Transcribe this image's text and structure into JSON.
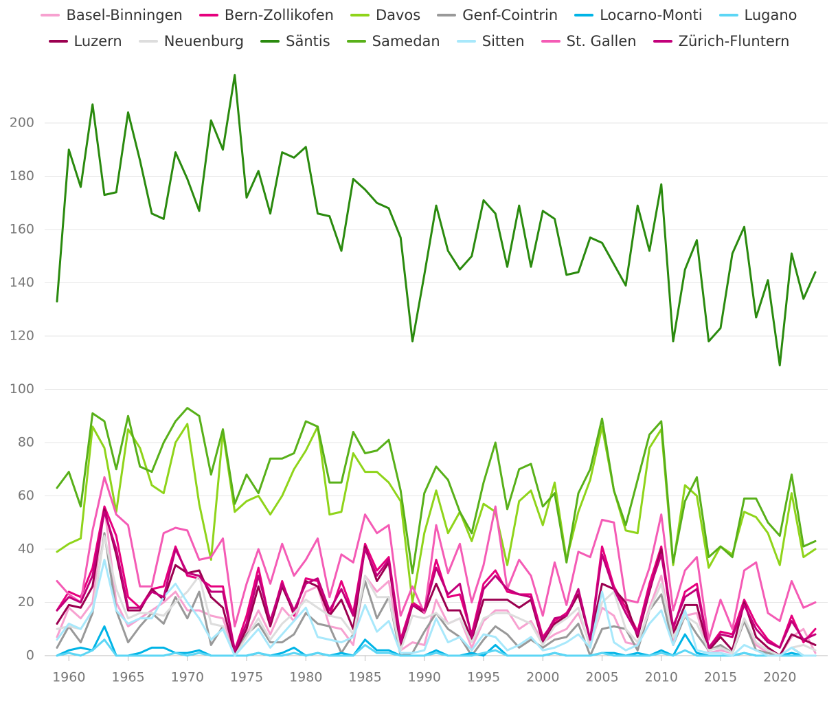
{
  "chart_data": {
    "type": "line",
    "x": [
      1959,
      1960,
      1961,
      1962,
      1963,
      1964,
      1965,
      1966,
      1967,
      1968,
      1969,
      1970,
      1971,
      1972,
      1973,
      1974,
      1975,
      1976,
      1977,
      1978,
      1979,
      1980,
      1981,
      1982,
      1983,
      1984,
      1985,
      1986,
      1987,
      1988,
      1989,
      1990,
      1991,
      1992,
      1993,
      1994,
      1995,
      1996,
      1997,
      1998,
      1999,
      2000,
      2001,
      2002,
      2003,
      2004,
      2005,
      2006,
      2007,
      2008,
      2009,
      2010,
      2011,
      2012,
      2013,
      2014,
      2015,
      2016,
      2017,
      2018,
      2019,
      2020,
      2021,
      2022,
      2023
    ],
    "xlim": [
      1959,
      2023
    ],
    "xticks": [
      1960,
      1965,
      1970,
      1975,
      1980,
      1985,
      1990,
      1995,
      2000,
      2005,
      2010,
      2015,
      2020
    ],
    "ylim": [
      0,
      220
    ],
    "yticks": [
      0,
      20,
      40,
      60,
      80,
      100,
      120,
      140,
      160,
      180,
      200
    ],
    "grid": true,
    "series": [
      {
        "name": "Basel-Binningen",
        "color": "#f7a1d0",
        "values": [
          7,
          18,
          14,
          20,
          56,
          20,
          11,
          14,
          17,
          20,
          24,
          17,
          17,
          15,
          14,
          1,
          8,
          17,
          8,
          18,
          13,
          24,
          26,
          11,
          10,
          4,
          30,
          24,
          28,
          2,
          5,
          4,
          21,
          12,
          14,
          3,
          13,
          17,
          17,
          10,
          13,
          5,
          8,
          10,
          16,
          4,
          18,
          15,
          5,
          4,
          18,
          30,
          5,
          15,
          16,
          1,
          2,
          1,
          13,
          4,
          1,
          0,
          7,
          10,
          1
        ]
      },
      {
        "name": "Bern-Zollikofen",
        "color": "#e6007e",
        "values": [
          17,
          24,
          22,
          33,
          56,
          45,
          22,
          18,
          25,
          26,
          41,
          30,
          29,
          26,
          26,
          2,
          15,
          33,
          12,
          28,
          15,
          29,
          28,
          15,
          28,
          16,
          42,
          32,
          37,
          6,
          20,
          17,
          36,
          22,
          23,
          8,
          27,
          32,
          24,
          23,
          23,
          7,
          13,
          16,
          23,
          6,
          41,
          26,
          18,
          9,
          27,
          41,
          10,
          24,
          27,
          3,
          9,
          8,
          21,
          12,
          6,
          3,
          15,
          5,
          10
        ]
      },
      {
        "name": "Davos",
        "color": "#8fd41a",
        "values": [
          39,
          42,
          44,
          86,
          78,
          54,
          85,
          78,
          64,
          61,
          80,
          87,
          57,
          36,
          84,
          54,
          58,
          60,
          53,
          60,
          70,
          77,
          86,
          53,
          54,
          76,
          69,
          69,
          65,
          58,
          20,
          46,
          62,
          46,
          54,
          43,
          57,
          54,
          34,
          58,
          62,
          49,
          65,
          36,
          54,
          66,
          86,
          62,
          47,
          46,
          78,
          85,
          34,
          64,
          60,
          33,
          41,
          38,
          54,
          52,
          46,
          34,
          61,
          37,
          40
        ]
      },
      {
        "name": "Genf-Cointrin",
        "color": "#999999",
        "values": [
          3,
          11,
          5,
          16,
          46,
          17,
          5,
          11,
          16,
          12,
          22,
          14,
          24,
          4,
          11,
          0,
          8,
          12,
          5,
          5,
          8,
          16,
          12,
          11,
          1,
          8,
          28,
          14,
          22,
          0,
          1,
          9,
          16,
          10,
          7,
          0,
          6,
          11,
          8,
          3,
          6,
          3,
          6,
          7,
          12,
          0,
          10,
          11,
          10,
          2,
          17,
          23,
          4,
          15,
          8,
          2,
          4,
          1,
          13,
          2,
          1,
          0,
          3,
          0,
          0
        ]
      },
      {
        "name": "Locarno-Monti",
        "color": "#00b4e6",
        "values": [
          0,
          2,
          3,
          2,
          11,
          0,
          0,
          1,
          3,
          3,
          1,
          1,
          2,
          0,
          0,
          0,
          0,
          1,
          0,
          1,
          3,
          0,
          1,
          0,
          1,
          0,
          6,
          2,
          2,
          0,
          0,
          0,
          2,
          0,
          0,
          1,
          0,
          4,
          0,
          0,
          0,
          0,
          1,
          0,
          0,
          0,
          1,
          1,
          0,
          1,
          0,
          2,
          0,
          8,
          1,
          0,
          0,
          0,
          1,
          0,
          0,
          0,
          1,
          0,
          0
        ]
      },
      {
        "name": "Lugano",
        "color": "#5cd6f5",
        "values": [
          0,
          1,
          0,
          2,
          6,
          0,
          0,
          0,
          0,
          0,
          1,
          0,
          1,
          0,
          0,
          0,
          0,
          1,
          0,
          0,
          1,
          0,
          1,
          0,
          0,
          0,
          4,
          1,
          1,
          0,
          0,
          0,
          1,
          0,
          0,
          0,
          1,
          2,
          0,
          0,
          0,
          0,
          1,
          0,
          0,
          0,
          1,
          0,
          0,
          0,
          0,
          1,
          0,
          2,
          0,
          0,
          0,
          0,
          1,
          0,
          0,
          0,
          0,
          0,
          0
        ]
      },
      {
        "name": "Luzern",
        "color": "#9b0050",
        "values": [
          12,
          19,
          18,
          26,
          55,
          38,
          17,
          17,
          25,
          21,
          34,
          31,
          32,
          22,
          18,
          1,
          10,
          26,
          11,
          26,
          16,
          28,
          26,
          15,
          21,
          10,
          41,
          28,
          35,
          3,
          19,
          16,
          27,
          17,
          17,
          6,
          21,
          21,
          21,
          18,
          21,
          5,
          12,
          15,
          23,
          6,
          27,
          25,
          20,
          7,
          24,
          40,
          8,
          19,
          19,
          2,
          7,
          2,
          20,
          7,
          3,
          0,
          8,
          6,
          4
        ]
      },
      {
        "name": "Neuenburg",
        "color": "#dddddd",
        "values": [
          10,
          11,
          10,
          17,
          45,
          25,
          14,
          16,
          16,
          15,
          20,
          24,
          30,
          12,
          11,
          0,
          7,
          14,
          6,
          12,
          16,
          21,
          18,
          15,
          14,
          8,
          30,
          22,
          22,
          2,
          15,
          14,
          16,
          12,
          14,
          5,
          14,
          16,
          16,
          14,
          12,
          4,
          11,
          14,
          18,
          3,
          20,
          24,
          10,
          5,
          17,
          27,
          7,
          15,
          12,
          2,
          3,
          1,
          14,
          5,
          2,
          0,
          3,
          4,
          2
        ]
      },
      {
        "name": "Säntis",
        "color": "#2a8a0e",
        "values": [
          133,
          190,
          176,
          207,
          173,
          174,
          204,
          186,
          166,
          164,
          189,
          179,
          167,
          201,
          190,
          218,
          172,
          182,
          166,
          189,
          187,
          191,
          166,
          165,
          152,
          179,
          175,
          170,
          168,
          157,
          118,
          143,
          169,
          152,
          145,
          150,
          171,
          166,
          146,
          169,
          146,
          167,
          164,
          143,
          144,
          157,
          155,
          147,
          139,
          169,
          152,
          177,
          118,
          145,
          156,
          118,
          123,
          151,
          161,
          127,
          141,
          109,
          151,
          134,
          144
        ]
      },
      {
        "name": "Samedan",
        "color": "#58b019",
        "values": [
          63,
          69,
          56,
          91,
          88,
          70,
          90,
          71,
          69,
          80,
          88,
          93,
          90,
          68,
          85,
          57,
          68,
          61,
          74,
          74,
          76,
          88,
          86,
          65,
          65,
          84,
          76,
          77,
          81,
          62,
          31,
          61,
          71,
          66,
          54,
          46,
          65,
          80,
          55,
          70,
          72,
          56,
          61,
          35,
          61,
          70,
          89,
          62,
          49,
          66,
          83,
          88,
          35,
          58,
          67,
          37,
          41,
          37,
          59,
          59,
          50,
          45,
          68,
          41,
          43
        ]
      },
      {
        "name": "Sitten",
        "color": "#a8e8fb",
        "values": [
          6,
          12,
          10,
          17,
          36,
          17,
          12,
          14,
          14,
          22,
          27,
          20,
          14,
          6,
          10,
          0,
          5,
          10,
          3,
          8,
          13,
          18,
          7,
          6,
          5,
          7,
          19,
          9,
          13,
          1,
          1,
          2,
          14,
          5,
          7,
          2,
          8,
          7,
          2,
          4,
          7,
          2,
          3,
          5,
          8,
          3,
          24,
          5,
          2,
          4,
          12,
          17,
          4,
          17,
          2,
          1,
          1,
          0,
          4,
          2,
          0,
          0,
          3,
          0,
          0
        ]
      },
      {
        "name": "St. Gallen",
        "color": "#f45bb5",
        "values": [
          28,
          23,
          20,
          47,
          67,
          53,
          49,
          26,
          26,
          46,
          48,
          47,
          36,
          37,
          44,
          11,
          27,
          40,
          27,
          42,
          30,
          36,
          44,
          22,
          38,
          35,
          53,
          46,
          49,
          15,
          26,
          16,
          49,
          31,
          42,
          20,
          34,
          56,
          25,
          36,
          30,
          15,
          35,
          19,
          39,
          37,
          51,
          50,
          21,
          20,
          33,
          53,
          17,
          32,
          37,
          6,
          21,
          10,
          32,
          35,
          16,
          13,
          28,
          18,
          20
        ]
      },
      {
        "name": "Zürich-Fluntern",
        "color": "#c2007a",
        "values": [
          17,
          22,
          20,
          30,
          54,
          40,
          18,
          18,
          24,
          22,
          40,
          31,
          30,
          24,
          24,
          2,
          12,
          30,
          13,
          27,
          17,
          27,
          29,
          17,
          25,
          15,
          40,
          30,
          36,
          5,
          19,
          17,
          33,
          23,
          27,
          7,
          25,
          30,
          25,
          23,
          22,
          6,
          14,
          15,
          25,
          6,
          38,
          25,
          16,
          8,
          25,
          38,
          11,
          22,
          25,
          3,
          8,
          7,
          19,
          10,
          5,
          3,
          13,
          6,
          8
        ]
      }
    ]
  }
}
